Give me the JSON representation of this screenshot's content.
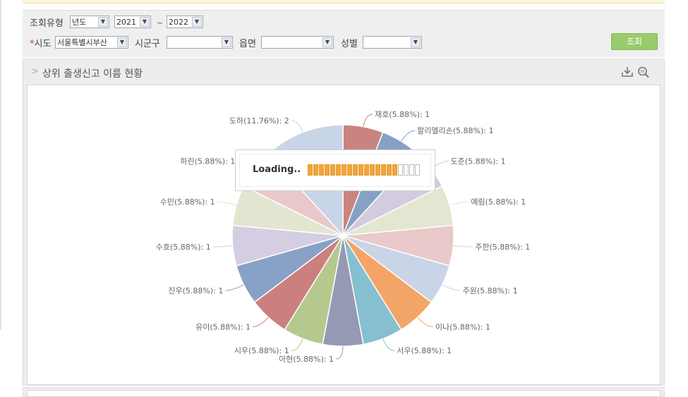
{
  "filter": {
    "type_label": "조회유형",
    "type_value": "년도",
    "year_from": "2021",
    "tilde": "~",
    "year_to": "2022",
    "sido_required": "*",
    "sido_label": "시도",
    "sido_value": "서울특별시부산",
    "sigungu_label": "시군구",
    "sigungu_value": "",
    "eupmyeon_label": "읍면",
    "eupmyeon_value": "",
    "gender_label": "성별",
    "gender_value": "",
    "search_button": "조회"
  },
  "panel": {
    "title": "상위 출생신고 이름 현황"
  },
  "loading": {
    "text": "Loading..",
    "progress": 0.8
  },
  "colors": [
    "#c98480",
    "#86a1c5",
    "#d3cbe0",
    "#e3e6d0",
    "#e9c9c9",
    "#c9d4e6",
    "#f2a566",
    "#86bfcf",
    "#9599b4",
    "#b5c98f"
  ],
  "chart_data": {
    "type": "pie",
    "title": "상위 출생신고 이름 현황",
    "slices": [
      {
        "label": "재호(5.88%): 1",
        "value": 1,
        "color": "#c98480"
      },
      {
        "label": "할리엘리손(5.88%): 1",
        "value": 1,
        "color": "#86a1c5"
      },
      {
        "label": "도준(5.88%): 1",
        "value": 1,
        "color": "#d3cbe0"
      },
      {
        "label": "예림(5.88%): 1",
        "value": 1,
        "color": "#e3e6d0"
      },
      {
        "label": "주한(5.88%): 1",
        "value": 1,
        "color": "#e9c9c9"
      },
      {
        "label": "주원(5.88%): 1",
        "value": 1,
        "color": "#c9d4e6"
      },
      {
        "label": "이나(5.88%): 1",
        "value": 1,
        "color": "#f2a566"
      },
      {
        "label": "서우(5.88%): 1",
        "value": 1,
        "color": "#86bfcf"
      },
      {
        "label": "아현(5.88%): 1",
        "value": 1,
        "color": "#9599b4"
      },
      {
        "label": "시우(5.88%): 1",
        "value": 1,
        "color": "#b5c98f"
      },
      {
        "label": "유이(5.88%): 1",
        "value": 1,
        "color": "#cb7f7e"
      },
      {
        "label": "진우(5.88%): 1",
        "value": 1,
        "color": "#87a2c6"
      },
      {
        "label": "수호(5.88%): 1",
        "value": 1,
        "color": "#d5cde1"
      },
      {
        "label": "수민(5.88%): 1",
        "value": 1,
        "color": "#e2e5d0"
      },
      {
        "label": "하린(5.88%): 1",
        "value": 1,
        "color": "#e8c8ca"
      },
      {
        "label": "도하(11.76%): 2",
        "value": 2,
        "color": "#c8d5e6"
      }
    ]
  }
}
